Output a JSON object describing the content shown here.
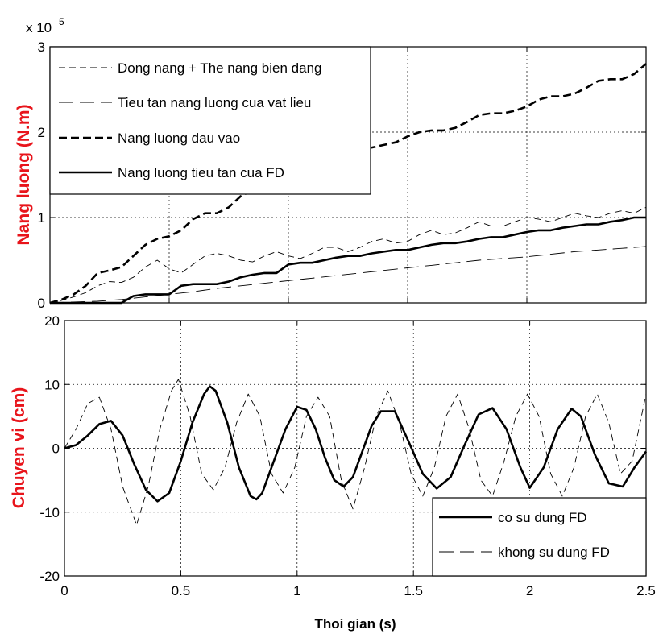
{
  "colors": {
    "axis_label": "#e8141b",
    "line": "#000000",
    "grid": "#000000",
    "background": "#ffffff"
  },
  "chart_data": [
    {
      "type": "line",
      "ylabel": "Nang luong (N.m)",
      "multiplier_base": "x 10",
      "multiplier_exp": "5",
      "xlim": [
        0,
        2.5
      ],
      "ylim": [
        0,
        3
      ],
      "xticks": [
        0,
        0.5,
        1,
        1.5,
        2,
        2.5
      ],
      "yticks": [
        0,
        1,
        2,
        3
      ],
      "ytick_labels": [
        "0",
        "1",
        "2",
        "3"
      ],
      "grid": true,
      "legend_position": "top-left",
      "series": [
        {
          "name": "Dong nang + The nang bien dang",
          "style": "dashed-thin",
          "x": [
            0,
            0.05,
            0.1,
            0.15,
            0.2,
            0.25,
            0.3,
            0.35,
            0.4,
            0.45,
            0.5,
            0.55,
            0.6,
            0.65,
            0.7,
            0.75,
            0.8,
            0.85,
            0.9,
            0.95,
            1.0,
            1.05,
            1.1,
            1.15,
            1.2,
            1.25,
            1.3,
            1.35,
            1.4,
            1.45,
            1.5,
            1.55,
            1.6,
            1.65,
            1.7,
            1.75,
            1.8,
            1.85,
            1.9,
            1.95,
            2.0,
            2.05,
            2.1,
            2.15,
            2.2,
            2.25,
            2.3,
            2.35,
            2.4,
            2.45,
            2.5
          ],
          "y": [
            0,
            0.03,
            0.07,
            0.12,
            0.2,
            0.25,
            0.24,
            0.3,
            0.42,
            0.5,
            0.4,
            0.35,
            0.45,
            0.55,
            0.58,
            0.55,
            0.5,
            0.48,
            0.55,
            0.6,
            0.55,
            0.52,
            0.58,
            0.65,
            0.65,
            0.6,
            0.65,
            0.72,
            0.75,
            0.7,
            0.72,
            0.8,
            0.85,
            0.8,
            0.82,
            0.88,
            0.95,
            0.9,
            0.9,
            0.95,
            1.0,
            0.98,
            0.95,
            1.0,
            1.05,
            1.02,
            1.0,
            1.05,
            1.08,
            1.05,
            1.12
          ]
        },
        {
          "name": "Tieu tan nang luong cua vat lieu",
          "style": "dashed-long",
          "x": [
            0,
            0.1,
            0.2,
            0.3,
            0.4,
            0.5,
            0.6,
            0.7,
            0.8,
            0.9,
            1.0,
            1.1,
            1.2,
            1.3,
            1.4,
            1.5,
            1.6,
            1.7,
            1.8,
            1.9,
            2.0,
            2.1,
            2.2,
            2.3,
            2.4,
            2.5
          ],
          "y": [
            0,
            0.01,
            0.02,
            0.04,
            0.07,
            0.1,
            0.13,
            0.17,
            0.2,
            0.23,
            0.26,
            0.29,
            0.32,
            0.35,
            0.38,
            0.41,
            0.44,
            0.47,
            0.5,
            0.52,
            0.54,
            0.57,
            0.6,
            0.62,
            0.64,
            0.66
          ]
        },
        {
          "name": "Nang luong dau vao",
          "style": "dashed-bold",
          "x": [
            0,
            0.05,
            0.1,
            0.15,
            0.2,
            0.25,
            0.3,
            0.35,
            0.4,
            0.45,
            0.5,
            0.55,
            0.6,
            0.65,
            0.7,
            0.75,
            0.8,
            0.85,
            0.9,
            0.95,
            1.0,
            1.05,
            1.1,
            1.15,
            1.2,
            1.25,
            1.3,
            1.35,
            1.4,
            1.45,
            1.5,
            1.55,
            1.6,
            1.65,
            1.7,
            1.75,
            1.8,
            1.85,
            1.9,
            1.95,
            2.0,
            2.05,
            2.1,
            2.15,
            2.2,
            2.25,
            2.3,
            2.35,
            2.4,
            2.45,
            2.5
          ],
          "y": [
            0,
            0.04,
            0.1,
            0.2,
            0.35,
            0.38,
            0.42,
            0.55,
            0.68,
            0.75,
            0.78,
            0.85,
            0.98,
            1.05,
            1.05,
            1.12,
            1.25,
            1.32,
            1.35,
            1.42,
            1.5,
            1.58,
            1.62,
            1.62,
            1.65,
            1.72,
            1.8,
            1.82,
            1.85,
            1.88,
            1.95,
            2.0,
            2.02,
            2.02,
            2.05,
            2.12,
            2.2,
            2.22,
            2.22,
            2.25,
            2.3,
            2.38,
            2.42,
            2.42,
            2.45,
            2.52,
            2.6,
            2.62,
            2.62,
            2.68,
            2.8
          ]
        },
        {
          "name": "Nang luong tieu tan cua FD",
          "style": "solid-bold",
          "x": [
            0,
            0.1,
            0.2,
            0.3,
            0.35,
            0.4,
            0.45,
            0.5,
            0.55,
            0.6,
            0.65,
            0.7,
            0.75,
            0.8,
            0.85,
            0.9,
            0.95,
            1.0,
            1.05,
            1.1,
            1.15,
            1.2,
            1.25,
            1.3,
            1.35,
            1.4,
            1.45,
            1.5,
            1.55,
            1.6,
            1.65,
            1.7,
            1.75,
            1.8,
            1.85,
            1.9,
            1.95,
            2.0,
            2.05,
            2.1,
            2.15,
            2.2,
            2.25,
            2.3,
            2.35,
            2.4,
            2.45,
            2.5
          ],
          "y": [
            0,
            0.0,
            0.0,
            0.0,
            0.08,
            0.1,
            0.1,
            0.1,
            0.2,
            0.22,
            0.22,
            0.22,
            0.25,
            0.3,
            0.33,
            0.35,
            0.35,
            0.45,
            0.47,
            0.47,
            0.5,
            0.53,
            0.55,
            0.55,
            0.58,
            0.6,
            0.62,
            0.62,
            0.65,
            0.68,
            0.7,
            0.7,
            0.72,
            0.75,
            0.77,
            0.77,
            0.8,
            0.83,
            0.85,
            0.85,
            0.88,
            0.9,
            0.92,
            0.92,
            0.95,
            0.97,
            1.0,
            1.0
          ]
        }
      ]
    },
    {
      "type": "line",
      "ylabel": "Chuyen vi (cm)",
      "xlabel": "Thoi gian (s)",
      "xlim": [
        0,
        2.5
      ],
      "ylim": [
        -20,
        20
      ],
      "xticks": [
        0,
        0.5,
        1,
        1.5,
        2,
        2.5
      ],
      "xtick_labels": [
        "0",
        "0.5",
        "1",
        "1.5",
        "2",
        "2.5"
      ],
      "yticks": [
        -20,
        -10,
        0,
        10,
        20
      ],
      "ytick_labels": [
        "-20",
        "-10",
        "0",
        "10",
        "20"
      ],
      "grid": true,
      "legend_position": "bottom-right",
      "series": [
        {
          "name": "co su dung FD",
          "style": "solid-bold",
          "x": [
            0,
            0.05,
            0.1,
            0.15,
            0.2,
            0.25,
            0.3,
            0.35,
            0.4,
            0.45,
            0.5,
            0.55,
            0.6,
            0.625,
            0.65,
            0.7,
            0.75,
            0.8,
            0.825,
            0.85,
            0.9,
            0.95,
            1.0,
            1.04,
            1.08,
            1.12,
            1.16,
            1.2,
            1.24,
            1.28,
            1.32,
            1.36,
            1.42,
            1.48,
            1.54,
            1.6,
            1.66,
            1.72,
            1.78,
            1.84,
            1.9,
            1.96,
            2.0,
            2.06,
            2.12,
            2.18,
            2.22,
            2.28,
            2.34,
            2.4,
            2.45,
            2.5
          ],
          "y": [
            0,
            0.5,
            2,
            3.8,
            4.3,
            2,
            -2.5,
            -6.5,
            -8.3,
            -7,
            -2,
            4,
            8.5,
            9.7,
            9,
            4,
            -3,
            -7.5,
            -8,
            -7,
            -2,
            3,
            6.5,
            6,
            3,
            -1.5,
            -5,
            -6,
            -4.5,
            -0.5,
            3.5,
            5.8,
            5.8,
            1,
            -4,
            -6.3,
            -4.5,
            0.5,
            5.3,
            6.3,
            3,
            -3,
            -6.2,
            -3,
            3,
            6.2,
            5,
            -1,
            -5.5,
            -6,
            -3,
            -0.5
          ]
        },
        {
          "name": "khong su dung FD",
          "style": "dashed-thin",
          "x": [
            0,
            0.05,
            0.1,
            0.15,
            0.2,
            0.25,
            0.31,
            0.36,
            0.41,
            0.46,
            0.49,
            0.54,
            0.59,
            0.64,
            0.69,
            0.74,
            0.79,
            0.84,
            0.89,
            0.94,
            0.99,
            1.04,
            1.09,
            1.14,
            1.19,
            1.24,
            1.29,
            1.34,
            1.39,
            1.44,
            1.49,
            1.54,
            1.59,
            1.64,
            1.69,
            1.74,
            1.79,
            1.84,
            1.89,
            1.94,
            1.99,
            2.04,
            2.09,
            2.14,
            2.19,
            2.24,
            2.29,
            2.34,
            2.39,
            2.44,
            2.5
          ],
          "y": [
            0,
            3,
            7,
            8,
            3,
            -6,
            -12,
            -6,
            3,
            9,
            10.8,
            5,
            -4,
            -6.5,
            -3,
            4,
            8.5,
            5,
            -4,
            -7,
            -3,
            5,
            8,
            5,
            -5,
            -9.5,
            -3,
            5,
            9,
            4,
            -4,
            -7.5,
            -3,
            5,
            8.5,
            3,
            -5,
            -7.5,
            -2,
            5,
            8.5,
            5,
            -4,
            -7.5,
            -3,
            5,
            8.5,
            4,
            -4,
            -2,
            8.5
          ]
        }
      ]
    }
  ]
}
